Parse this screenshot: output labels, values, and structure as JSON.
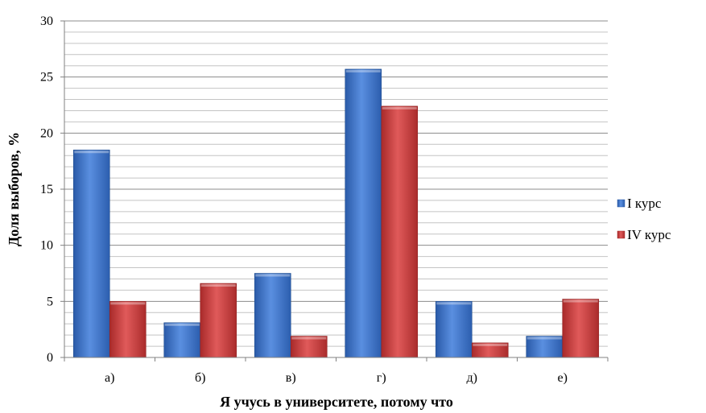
{
  "chart_data": {
    "type": "bar",
    "categories": [
      "а)",
      "б)",
      "в)",
      "г)",
      "д)",
      "е)"
    ],
    "series": [
      {
        "name": "I курс",
        "values": [
          18.5,
          3.1,
          7.5,
          25.7,
          5.0,
          1.9
        ],
        "color": "#3b6fc4"
      },
      {
        "name": "IV курс",
        "values": [
          5.0,
          6.6,
          1.9,
          22.4,
          1.3,
          5.2
        ],
        "color": "#c63a3a"
      }
    ],
    "xlabel": "Я учусь в университете, потому что",
    "ylabel": "Доля выборов, %",
    "ylim": [
      0,
      30
    ],
    "yticks": [
      "0",
      "5",
      "10",
      "15",
      "20",
      "25",
      "30"
    ],
    "grid": "horizontal-minor",
    "legend_position": "right"
  }
}
